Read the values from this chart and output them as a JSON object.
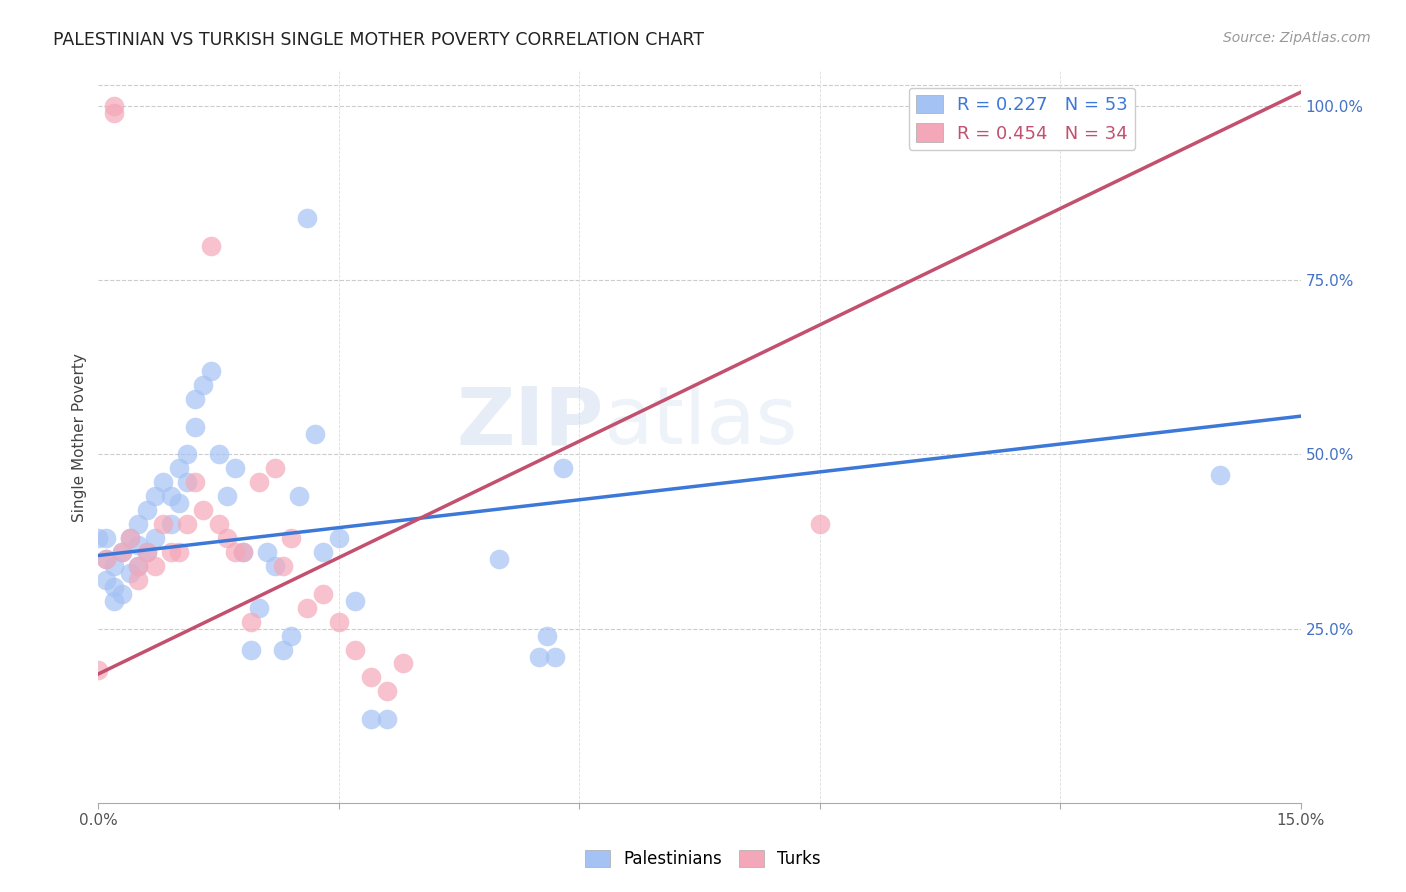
{
  "title": "PALESTINIAN VS TURKISH SINGLE MOTHER POVERTY CORRELATION CHART",
  "source": "Source: ZipAtlas.com",
  "ylabel": "Single Mother Poverty",
  "xlim": [
    0.0,
    0.15
  ],
  "ylim": [
    0.0,
    1.05
  ],
  "xticks": [
    0.0,
    0.03,
    0.06,
    0.09,
    0.12,
    0.15
  ],
  "xticklabels": [
    "0.0%",
    "",
    "",
    "",
    "",
    "15.0%"
  ],
  "yticks_right": [
    0.25,
    0.5,
    0.75,
    1.0
  ],
  "ytick_right_labels": [
    "25.0%",
    "50.0%",
    "75.0%",
    "100.0%"
  ],
  "blue_color": "#a4c2f4",
  "pink_color": "#f4a7b9",
  "blue_line_color": "#3c78d8",
  "pink_line_color": "#c2506e",
  "legend_blue_R": "0.227",
  "legend_blue_N": "53",
  "legend_pink_R": "0.454",
  "legend_pink_N": "34",
  "blue_x": [
    0.001,
    0.001,
    0.001,
    0.002,
    0.002,
    0.002,
    0.003,
    0.003,
    0.004,
    0.004,
    0.005,
    0.005,
    0.005,
    0.006,
    0.006,
    0.007,
    0.007,
    0.008,
    0.009,
    0.009,
    0.01,
    0.01,
    0.011,
    0.011,
    0.012,
    0.012,
    0.013,
    0.014,
    0.015,
    0.016,
    0.017,
    0.018,
    0.019,
    0.02,
    0.021,
    0.022,
    0.023,
    0.024,
    0.025,
    0.026,
    0.027,
    0.028,
    0.03,
    0.032,
    0.034,
    0.036,
    0.05,
    0.055,
    0.056,
    0.057,
    0.058,
    0.14,
    0.0
  ],
  "blue_y": [
    0.38,
    0.35,
    0.32,
    0.34,
    0.31,
    0.29,
    0.36,
    0.3,
    0.38,
    0.33,
    0.4,
    0.37,
    0.34,
    0.42,
    0.36,
    0.44,
    0.38,
    0.46,
    0.44,
    0.4,
    0.48,
    0.43,
    0.5,
    0.46,
    0.58,
    0.54,
    0.6,
    0.62,
    0.5,
    0.44,
    0.48,
    0.36,
    0.22,
    0.28,
    0.36,
    0.34,
    0.22,
    0.24,
    0.44,
    0.84,
    0.53,
    0.36,
    0.38,
    0.29,
    0.12,
    0.12,
    0.35,
    0.21,
    0.24,
    0.21,
    0.48,
    0.47,
    0.38
  ],
  "pink_x": [
    0.001,
    0.002,
    0.002,
    0.003,
    0.004,
    0.005,
    0.005,
    0.006,
    0.007,
    0.008,
    0.009,
    0.01,
    0.011,
    0.012,
    0.013,
    0.014,
    0.015,
    0.016,
    0.017,
    0.018,
    0.019,
    0.02,
    0.022,
    0.023,
    0.024,
    0.026,
    0.028,
    0.03,
    0.032,
    0.034,
    0.036,
    0.038,
    0.09,
    0.0
  ],
  "pink_y": [
    0.35,
    0.99,
    1.0,
    0.36,
    0.38,
    0.34,
    0.32,
    0.36,
    0.34,
    0.4,
    0.36,
    0.36,
    0.4,
    0.46,
    0.42,
    0.8,
    0.4,
    0.38,
    0.36,
    0.36,
    0.26,
    0.46,
    0.48,
    0.34,
    0.38,
    0.28,
    0.3,
    0.26,
    0.22,
    0.18,
    0.16,
    0.2,
    0.4,
    0.19
  ],
  "watermark": "ZIPatlas",
  "background_color": "#ffffff",
  "grid_color": "#cccccc",
  "blue_line_x0": 0.0,
  "blue_line_y0": 0.355,
  "blue_line_x1": 0.15,
  "blue_line_y1": 0.555,
  "pink_line_x0": 0.0,
  "pink_line_y0": 0.185,
  "pink_line_x1": 0.15,
  "pink_line_y1": 1.02
}
